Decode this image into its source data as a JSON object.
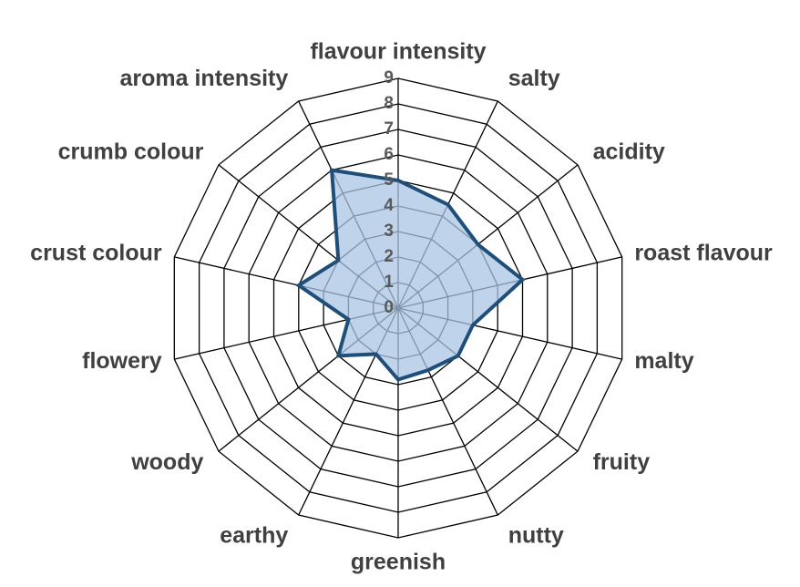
{
  "chart_data": {
    "type": "radar",
    "categories": [
      "flavour intensity",
      "salty",
      "acidity",
      "roast flavour",
      "malty",
      "fruity",
      "nutty",
      "greenish",
      "earthy",
      "woody",
      "flowery",
      "crust colour",
      "crumb colour",
      "aroma intensity"
    ],
    "values": [
      5,
      4.5,
      4,
      5,
      3,
      3,
      2.7,
      2.8,
      2,
      3,
      2,
      4,
      3,
      6
    ],
    "color": "#1f4e79",
    "fill": "#a9c4e4",
    "ylim": [
      0,
      9
    ],
    "yticks": [
      0,
      1,
      2,
      3,
      4,
      5,
      6,
      7,
      8,
      9
    ],
    "grid": true
  }
}
